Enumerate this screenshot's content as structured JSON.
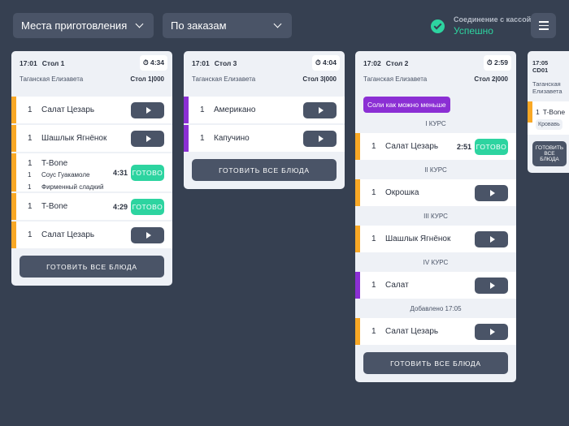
{
  "toolbar": {
    "station_select": "Места приготовления",
    "sort_select": "По заказам",
    "connection_label": "Соединение с кассой",
    "connection_status": "Успешно",
    "accent": "#2dd4a0"
  },
  "colors": {
    "orange": "#f9a825",
    "purple": "#8b2fd4",
    "ready": "#2dd4a0"
  },
  "cards": [
    {
      "time": "17:01",
      "table": "Стол 1",
      "timer": "4:34",
      "waiter": "Таганская Елизавета",
      "table_code": "Стол 1|000",
      "button": "ГОТОВИТЬ ВСЕ БЛЮДА",
      "items": [
        {
          "qty": "1",
          "name": "Салат Цезарь",
          "color": "orange",
          "state": "play"
        },
        {
          "qty": "1",
          "name": "Шашлык Ягнёнок",
          "color": "orange",
          "state": "play"
        },
        {
          "qty": "1",
          "name": "T-Bone",
          "color": "orange",
          "state": "ready",
          "ready_time": "4:31",
          "ready_label": "ГОТОВО",
          "modifiers": [
            {
              "qty": "1",
              "name": "Соус Гуакамоле"
            },
            {
              "qty": "1",
              "name": "Фирменный сладкий"
            }
          ]
        },
        {
          "qty": "1",
          "name": "T-Bone",
          "color": "orange",
          "state": "ready",
          "ready_time": "4:29",
          "ready_label": "ГОТОВО"
        },
        {
          "qty": "1",
          "name": "Салат Цезарь",
          "color": "orange",
          "state": "play"
        }
      ]
    },
    {
      "time": "17:01",
      "table": "Стол 3",
      "timer": "4:04",
      "waiter": "Таганская Елизавета",
      "table_code": "Стол 3|000",
      "button": "ГОТОВИТЬ ВСЕ БЛЮДА",
      "items": [
        {
          "qty": "1",
          "name": "Американо",
          "color": "purple",
          "state": "play"
        },
        {
          "qty": "1",
          "name": "Капучино",
          "color": "purple",
          "state": "play"
        }
      ]
    },
    {
      "time": "17:02",
      "table": "Стол 2",
      "timer": "2:59",
      "waiter": "Таганская Елизавета",
      "table_code": "Стол 2|000",
      "note": "Соли как можно меньше",
      "button": "ГОТОВИТЬ ВСЕ БЛЮДА",
      "items": [
        {
          "course": "I КУРС",
          "qty": "1",
          "name": "Салат Цезарь",
          "color": "orange",
          "state": "ready",
          "ready_time": "2:51",
          "ready_label": "ГОТОВО"
        },
        {
          "course": "II КУРС",
          "qty": "1",
          "name": "Окрошка",
          "color": "orange",
          "state": "play"
        },
        {
          "course": "III КУРС",
          "qty": "1",
          "name": "Шашлык Ягнёнок",
          "color": "orange",
          "state": "play"
        },
        {
          "course": "IV КУРС",
          "qty": "1",
          "name": "Салат",
          "color": "purple",
          "state": "play"
        },
        {
          "course": "Добавлено 17:05",
          "qty": "1",
          "name": "Салат Цезарь",
          "color": "orange",
          "state": "play"
        }
      ]
    },
    {
      "time": "17:05",
      "table": "CD01",
      "timer": "",
      "waiter": "Таганская Елизавета",
      "table_code": "",
      "button": "ГОТОВИТЬ ВСЕ БЛЮДА",
      "items": [
        {
          "qty": "1",
          "name": "T-Bone",
          "color": "orange",
          "state": "none",
          "chip": "Кровавь"
        }
      ]
    }
  ]
}
